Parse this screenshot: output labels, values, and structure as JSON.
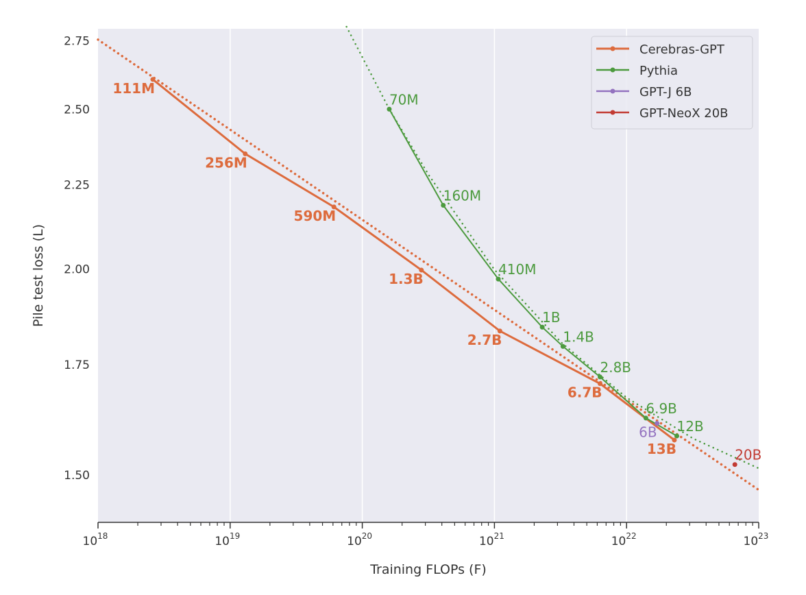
{
  "chart_data": {
    "type": "line",
    "xlabel": "Training FLOPs (F)",
    "ylabel": "Pile test loss (L)",
    "xscale": "log",
    "yscale": "log",
    "xlim": [
      1e+18,
      1e+23
    ],
    "ylim": [
      1.404,
      2.797
    ],
    "x_ticks": [
      {
        "base": "10",
        "exp": "18",
        "value": 1e+18
      },
      {
        "base": "10",
        "exp": "19",
        "value": 1e+19
      },
      {
        "base": "10",
        "exp": "20",
        "value": 1e+20
      },
      {
        "base": "10",
        "exp": "21",
        "value": 1e+21
      },
      {
        "base": "10",
        "exp": "22",
        "value": 1e+22
      },
      {
        "base": "10",
        "exp": "23",
        "value": 1e+23
      }
    ],
    "y_ticks": [
      {
        "label": "1.50",
        "value": 1.5
      },
      {
        "label": "1.75",
        "value": 1.75
      },
      {
        "label": "2.00",
        "value": 2.0
      },
      {
        "label": "2.25",
        "value": 2.25
      },
      {
        "label": "2.50",
        "value": 2.5
      },
      {
        "label": "2.75",
        "value": 2.75
      }
    ],
    "grid": "vertical major lines",
    "background": "#eaeaf2",
    "legend_position": "top-right",
    "series": [
      {
        "name": "Cerebras-GPT",
        "color": "#dd6b3d",
        "points": [
          {
            "label": "111M",
            "x": 2.6e+18,
            "y": 2.606
          },
          {
            "label": "256M",
            "x": 1.3e+19,
            "y": 2.349
          },
          {
            "label": "590M",
            "x": 6.1e+19,
            "y": 2.181
          },
          {
            "label": "1.3B",
            "x": 2.8e+20,
            "y": 1.997
          },
          {
            "label": "2.7B",
            "x": 1.1e+21,
            "y": 1.834
          },
          {
            "label": "6.7B",
            "x": 6.3e+21,
            "y": 1.704
          },
          {
            "label": "13B",
            "x": 2.3e+22,
            "y": 1.575
          }
        ],
        "fit": [
          {
            "x": 1e+18,
            "y": 2.755
          },
          {
            "x": 1e+23,
            "y": 1.469
          }
        ]
      },
      {
        "name": "Pythia",
        "color": "#4c9a3e",
        "points": [
          {
            "label": "70M",
            "x": 1.6e+20,
            "y": 2.5
          },
          {
            "label": "160M",
            "x": 4.1e+20,
            "y": 2.186
          },
          {
            "label": "410M",
            "x": 1.07e+21,
            "y": 1.972
          },
          {
            "label": "1B",
            "x": 2.3e+21,
            "y": 1.844
          },
          {
            "label": "1.4B",
            "x": 3.3e+21,
            "y": 1.795
          },
          {
            "label": "2.8B",
            "x": 6.3e+21,
            "y": 1.72
          },
          {
            "label": "6.9B",
            "x": 1.4e+22,
            "y": 1.624
          },
          {
            "label": "12B",
            "x": 2.4e+22,
            "y": 1.584
          }
        ],
        "fit": [
          {
            "x": 7.6e+19,
            "y": 2.805
          },
          {
            "x": 1.6e+20,
            "y": 2.5
          },
          {
            "x": 3.2e+20,
            "y": 2.279
          },
          {
            "x": 1e+21,
            "y": 1.998
          },
          {
            "x": 3.2e+21,
            "y": 1.805
          },
          {
            "x": 1e+22,
            "y": 1.671
          },
          {
            "x": 3.2e+22,
            "y": 1.578
          },
          {
            "x": 1e+23,
            "y": 1.514
          }
        ]
      },
      {
        "name": "GPT-J 6B",
        "color": "#9372bf",
        "points": [
          {
            "label": "6B",
            "x": 1.7e+22,
            "y": 1.612
          }
        ]
      },
      {
        "name": "GPT-NeoX 20B",
        "color": "#c23b33",
        "points": [
          {
            "label": "20B",
            "x": 6.6e+22,
            "y": 1.522
          }
        ]
      }
    ]
  }
}
